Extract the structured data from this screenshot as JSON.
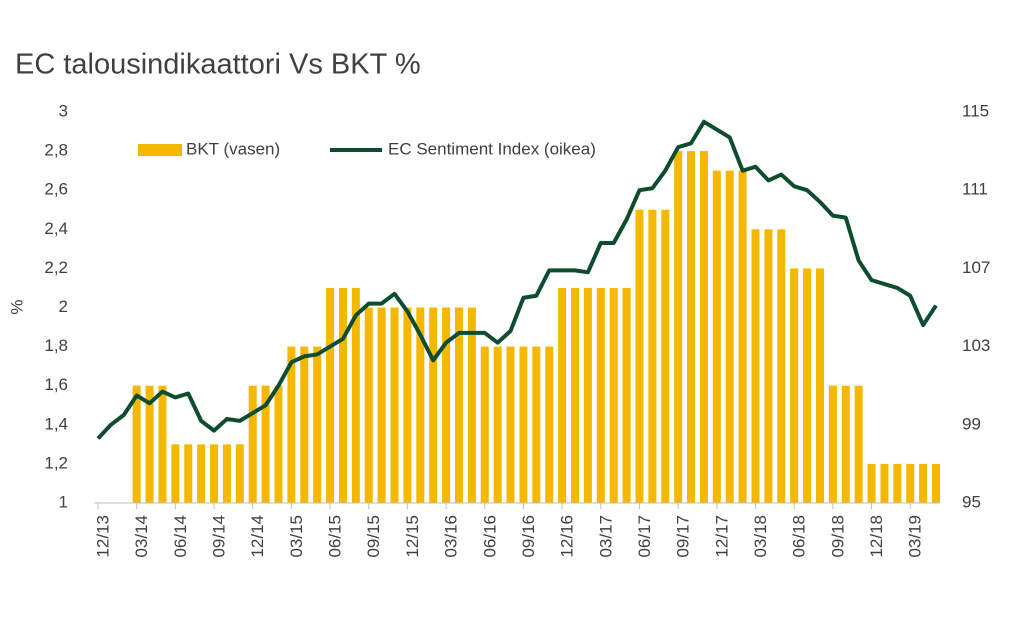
{
  "chart_data": {
    "type": "bar_line",
    "title": "EC talousindikaattori Vs BKT %",
    "y_label": "%",
    "categories": [
      "12/13",
      null,
      null,
      "03/14",
      null,
      null,
      "06/14",
      null,
      null,
      "09/14",
      null,
      null,
      "12/14",
      null,
      null,
      "03/15",
      null,
      null,
      "06/15",
      null,
      null,
      "09/15",
      null,
      null,
      "12/15",
      null,
      null,
      "03/16",
      null,
      null,
      "06/16",
      null,
      null,
      "09/16",
      null,
      null,
      "12/16",
      null,
      null,
      "03/17",
      null,
      null,
      "06/17",
      null,
      null,
      "09/17",
      null,
      null,
      "12/17",
      null,
      null,
      "03/18",
      null,
      null,
      "06/18",
      null,
      null,
      "09/18",
      null,
      null,
      "12/18",
      null,
      null,
      "03/19",
      null,
      null
    ],
    "series": [
      {
        "name": "BKT (vasen)",
        "color": "#f5b800",
        "type": "bar",
        "values": [
          null,
          null,
          null,
          1.6,
          1.6,
          1.6,
          1.3,
          1.3,
          1.3,
          1.3,
          1.3,
          1.3,
          1.6,
          1.6,
          1.6,
          1.8,
          1.8,
          1.8,
          2.1,
          2.1,
          2.1,
          2.0,
          2.0,
          2.0,
          2.0,
          2.0,
          2.0,
          2.0,
          2.0,
          2.0,
          1.8,
          1.8,
          1.8,
          1.8,
          1.8,
          1.8,
          2.1,
          2.1,
          2.1,
          2.1,
          2.1,
          2.1,
          2.5,
          2.5,
          2.5,
          2.8,
          2.8,
          2.8,
          2.7,
          2.7,
          2.7,
          2.4,
          2.4,
          2.4,
          2.2,
          2.2,
          2.2,
          1.6,
          1.6,
          1.6,
          1.2,
          1.2,
          1.2,
          1.2,
          1.2,
          1.2
        ]
      },
      {
        "name": "EC Sentiment Index (oikea)",
        "color": "#0d4d2e",
        "type": "line",
        "axis": "y2",
        "values": [
          98.3,
          99.0,
          99.5,
          100.5,
          100.1,
          100.7,
          100.4,
          100.6,
          99.2,
          98.7,
          99.3,
          99.2,
          99.6,
          100.0,
          101.0,
          102.2,
          102.5,
          102.6,
          103.0,
          103.4,
          104.6,
          105.2,
          105.2,
          105.7,
          104.8,
          103.6,
          102.3,
          103.2,
          103.7,
          103.7,
          103.7,
          103.2,
          103.8,
          105.5,
          105.6,
          106.9,
          106.9,
          106.9,
          106.8,
          108.3,
          108.3,
          109.5,
          111.0,
          111.1,
          112.0,
          113.2,
          113.4,
          114.5,
          114.1,
          113.7,
          112.0,
          112.2,
          111.5,
          111.8,
          111.2,
          111.0,
          110.4,
          109.7,
          109.6,
          107.4,
          106.4,
          106.2,
          106.0,
          105.6,
          104.1,
          105.1
        ]
      }
    ],
    "ylim": [
      1,
      3
    ],
    "yticks": [
      1,
      {
        "value": 1.2,
        "label": "1,2"
      },
      {
        "value": 1.4,
        "label": "1,4"
      },
      {
        "value": 1.6,
        "label": "1,6"
      },
      {
        "value": 1.8,
        "label": "1,8"
      },
      2,
      {
        "value": 2.2,
        "label": "2,2"
      },
      {
        "value": 2.4,
        "label": "2,4"
      },
      {
        "value": 2.6,
        "label": "2,6"
      },
      {
        "value": 2.8,
        "label": "2,8"
      },
      3
    ],
    "y2lim": [
      95,
      115
    ],
    "y2ticks": [
      95,
      99,
      103,
      107,
      111,
      115
    ],
    "grid": false,
    "legend": "top"
  }
}
